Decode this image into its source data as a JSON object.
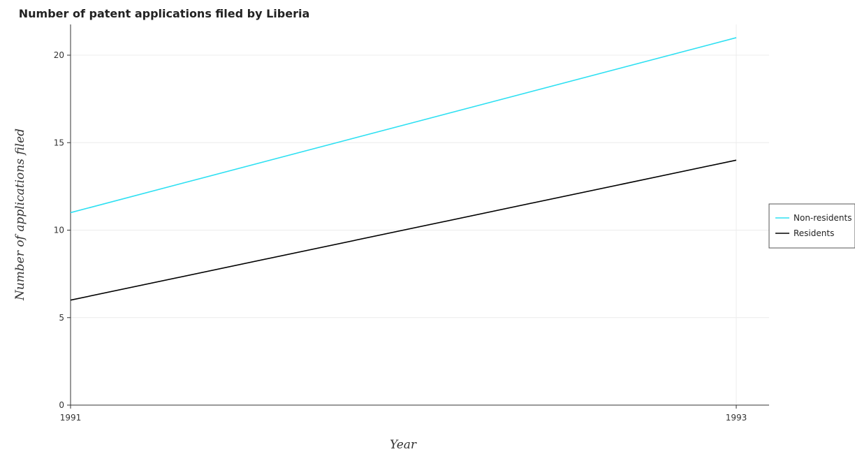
{
  "chart_data": {
    "type": "line",
    "title": "Number of patent applications filed by Liberia",
    "xlabel": "Year",
    "ylabel": "Number of applications filed",
    "x": [
      "1991",
      "1993"
    ],
    "ylim": [
      0,
      21
    ],
    "yticks": [
      0,
      5,
      10,
      15,
      20
    ],
    "grid": true,
    "legend_position": "right",
    "series": [
      {
        "name": "Non-residents",
        "color": "#2ee0f2",
        "values": [
          11,
          21
        ]
      },
      {
        "name": "Residents",
        "color": "#000000",
        "values": [
          6,
          14
        ]
      }
    ]
  }
}
